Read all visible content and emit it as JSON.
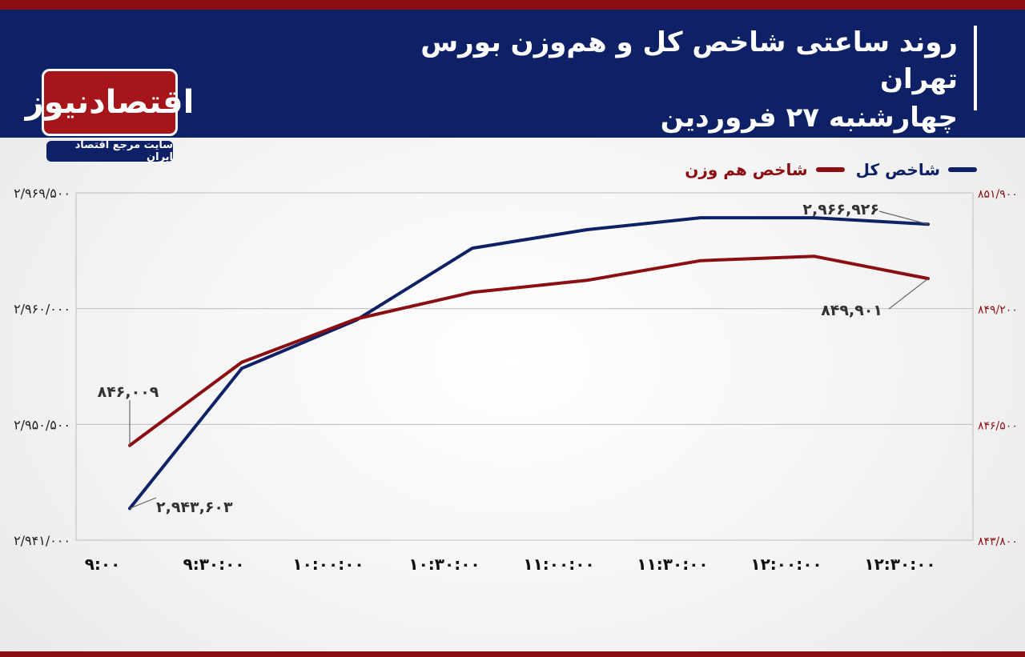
{
  "header": {
    "title_line1": "روند ساعتی شاخص کل و هم‌وزن بورس تهران",
    "title_line2": "چهارشنبه ۲۷ فروردین"
  },
  "logo": {
    "name": "اقتصادنیوز",
    "tagline": "سایت مرجع اقتصاد ایران"
  },
  "colors": {
    "main_index": "#0f2166",
    "equal_weight_index": "#8b0f12",
    "header_bg": "#0f2166",
    "accent": "#8b0f12"
  },
  "chart_data": {
    "type": "line",
    "categories": [
      "9:00",
      "9:30:00",
      "10:00:00",
      "10:30:00",
      "11:00:00",
      "11:30:00",
      "12:00:00",
      "12:30:00"
    ],
    "series": [
      {
        "name": "شاخص کل",
        "axis": "left",
        "color": "#0f2166",
        "values": [
          2943603,
          2955100,
          2959060,
          2964960,
          2966480,
          2967460,
          2967460,
          2966926
        ]
      },
      {
        "name": "شاخص هم وزن",
        "axis": "right",
        "color": "#8b0f12",
        "values": [
          846009,
          847950,
          848960,
          849580,
          849860,
          850320,
          850420,
          849901
        ]
      }
    ],
    "left_axis": {
      "ylim": [
        2941000,
        2969500
      ],
      "tick_labels": [
        "۲/۹۶۹/۵۰۰",
        "۲/۹۶۰/۰۰۰",
        "۲/۹۵۰/۵۰۰",
        "۲/۹۴۱/۰۰۰"
      ]
    },
    "right_axis": {
      "ylim": [
        843800,
        851900
      ],
      "tick_labels": [
        "۸۵۱/۹۰۰",
        "۸۴۹/۲۰۰",
        "۸۴۶/۵۰۰",
        "۸۴۳/۸۰۰"
      ]
    },
    "x_tick_labels": [
      "۹:۰۰",
      "۹:۳۰:۰۰",
      "۱۰:۰۰:۰۰",
      "۱۰:۳۰:۰۰",
      "۱۱:۰۰:۰۰",
      "۱۱:۳۰:۰۰",
      "۱۲:۰۰:۰۰",
      "۱۲:۳۰:۰۰"
    ],
    "annotations": [
      {
        "text": "۲,۹۴۳,۶۰۳",
        "series": 0,
        "point": 0
      },
      {
        "text": "۲,۹۶۶,۹۲۶",
        "series": 0,
        "point": 7
      },
      {
        "text": "۸۴۶,۰۰۹",
        "series": 1,
        "point": 0
      },
      {
        "text": "۸۴۹,۹۰۱",
        "series": 1,
        "point": 7
      }
    ],
    "grid": true,
    "legend": "top-right"
  }
}
